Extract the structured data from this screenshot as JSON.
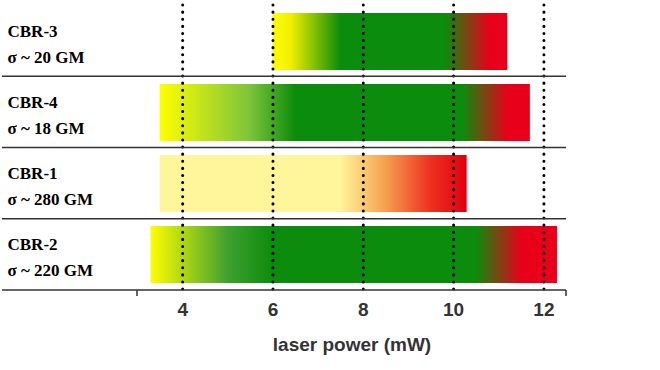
{
  "chart_data": {
    "type": "bar",
    "orientation": "horizontal",
    "categories": [
      "CBR-3",
      "CBR-4",
      "CBR-1",
      "CBR-2"
    ],
    "sublabels": [
      "σ ~ 20 GM",
      "σ ~ 18 GM",
      "σ ~ 280 GM",
      "σ ~ 220 GM"
    ],
    "start": [
      6.0,
      3.5,
      3.5,
      3.3
    ],
    "end": [
      11.2,
      11.7,
      10.3,
      12.3
    ],
    "gradients": [
      [
        {
          "x": 6.0,
          "color": "#ffff00"
        },
        {
          "x": 6.4,
          "color": "#f0f000"
        },
        {
          "x": 7.5,
          "color": "#0c8c0c"
        },
        {
          "x": 9.8,
          "color": "#0c8c0c"
        },
        {
          "x": 10.8,
          "color": "#e8001a"
        },
        {
          "x": 11.2,
          "color": "#e8001a"
        }
      ],
      [
        {
          "x": 3.5,
          "color": "#ffff00"
        },
        {
          "x": 5.5,
          "color": "#7cc43a"
        },
        {
          "x": 6.5,
          "color": "#0c8c0c"
        },
        {
          "x": 10.2,
          "color": "#0c8c0c"
        },
        {
          "x": 11.2,
          "color": "#e8001a"
        },
        {
          "x": 11.7,
          "color": "#e8001a"
        }
      ],
      [
        {
          "x": 3.5,
          "color": "#fff59a"
        },
        {
          "x": 7.5,
          "color": "#fff59a"
        },
        {
          "x": 8.5,
          "color": "#f5a050"
        },
        {
          "x": 9.5,
          "color": "#ee3020"
        },
        {
          "x": 10.3,
          "color": "#e00010"
        }
      ],
      [
        {
          "x": 3.3,
          "color": "#ffff00"
        },
        {
          "x": 5.0,
          "color": "#40a030"
        },
        {
          "x": 6.0,
          "color": "#0c8c0c"
        },
        {
          "x": 10.5,
          "color": "#0c8c0c"
        },
        {
          "x": 11.5,
          "color": "#e8001a"
        },
        {
          "x": 12.3,
          "color": "#e8001a"
        }
      ]
    ],
    "xlabel": "laser power (mW)",
    "xlim": [
      3,
      12.5
    ],
    "xticks": [
      4,
      6,
      8,
      10,
      12
    ],
    "grid": true
  }
}
